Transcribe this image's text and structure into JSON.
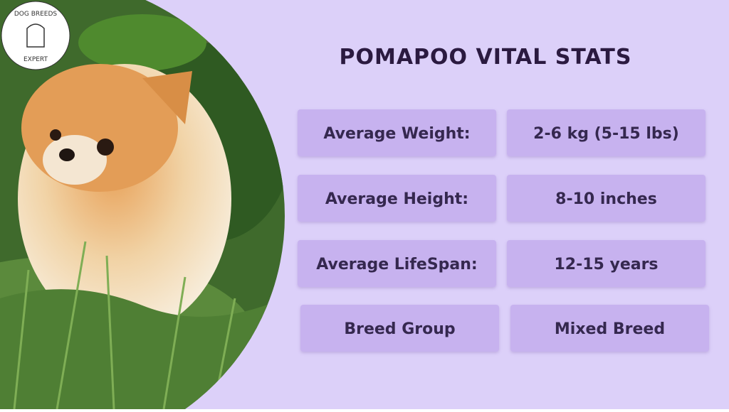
{
  "logo": {
    "top": "DOG BREEDS",
    "bottom": "EXPERT"
  },
  "title": "POMAPOO  VITAL STATS",
  "stats": [
    {
      "label": "Average Weight:",
      "value": "2-6 kg (5-15 lbs)"
    },
    {
      "label": "Average Height:",
      "value": "8-10 inches"
    },
    {
      "label": "Average LifeSpan:",
      "value": "12-15 years"
    },
    {
      "label": "Breed Group",
      "value": "Mixed Breed"
    }
  ]
}
